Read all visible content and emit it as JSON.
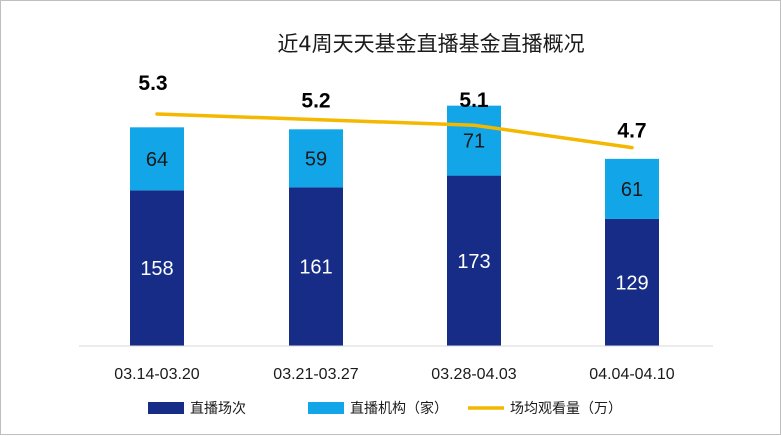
{
  "chart_data": {
    "type": "bar",
    "title": "近4周天天基金直播基金直播概况",
    "categories": [
      "03.14-03.20",
      "03.21-03.27",
      "03.28-04.03",
      "04.04-04.10"
    ],
    "series": [
      {
        "name": "直播场次",
        "type": "bar",
        "stacked": true,
        "color": "#162C86",
        "values": [
          158,
          161,
          173,
          129
        ]
      },
      {
        "name": "直播机构（家）",
        "type": "bar",
        "stacked": true,
        "color": "#12A5E8",
        "values": [
          64,
          59,
          71,
          61
        ]
      },
      {
        "name": "场均观看量（万）",
        "type": "line",
        "color": "#F5B800",
        "values": [
          5.3,
          5.2,
          5.1,
          4.7
        ]
      }
    ],
    "grid": false,
    "legend": "bottom"
  }
}
